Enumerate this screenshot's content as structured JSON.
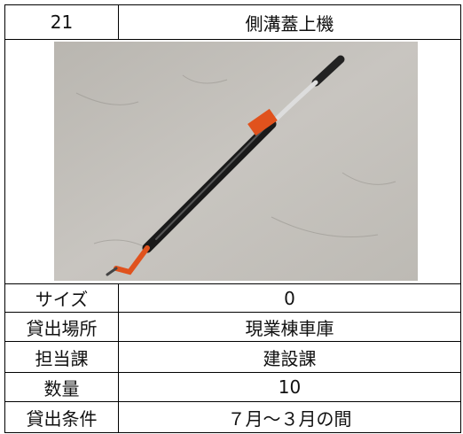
{
  "header": {
    "number": "21",
    "name": "側溝蓋上機"
  },
  "table": {
    "rows": [
      [
        "サイズ",
        "0"
      ],
      [
        "貸出場所",
        "現業棟車庫"
      ],
      [
        "担当課",
        "建設課"
      ],
      [
        "数量",
        "10"
      ],
      [
        "貸出条件",
        "７月～３月の間"
      ]
    ]
  }
}
